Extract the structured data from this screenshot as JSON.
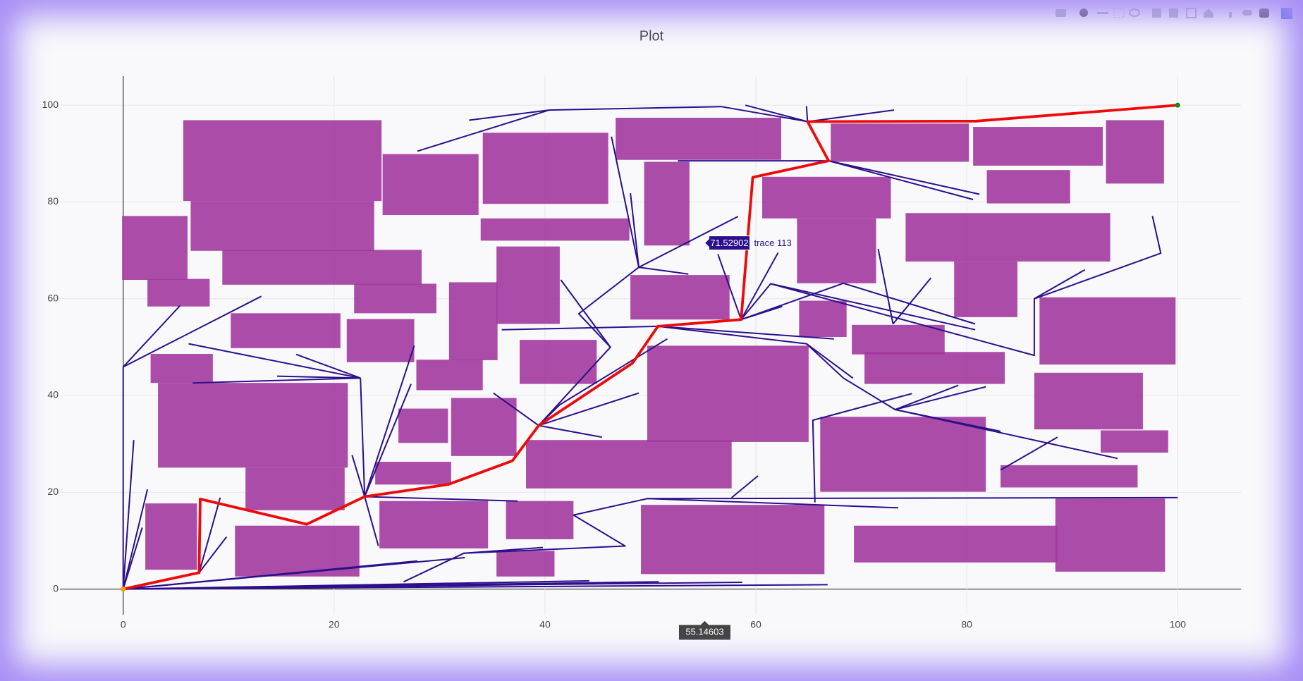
{
  "chart_data": {
    "type": "line",
    "title": "Plot",
    "xlim": [
      -6,
      106
    ],
    "ylim": [
      -5.3,
      106
    ],
    "xticks": [
      0,
      20,
      40,
      60,
      80,
      100
    ],
    "yticks": [
      0,
      20,
      40,
      60,
      80,
      100
    ],
    "grid": true,
    "obstacles": {
      "color": "#a2399e",
      "x0": [
        5.7,
        6.4,
        -0.1,
        9.4,
        2.3,
        24.6,
        34.1,
        33.9,
        46.7,
        49.4,
        35.4,
        30.9,
        21.9,
        10.2,
        21.2,
        2.6,
        3.3,
        11.6,
        2.1,
        10.6,
        27.8,
        26.1,
        31.1,
        23.9,
        24.3,
        36.3,
        35.4,
        37.6,
        38.2,
        48.1,
        49.7,
        49.1,
        60.6,
        63.9,
        64.1,
        67.1,
        80.6,
        93.2,
        81.9,
        74.2,
        78.8,
        86.9,
        69.1,
        70.3,
        86.4,
        92.7,
        66.1,
        83.2,
        69.3,
        88.4
      ],
      "x1": [
        24.5,
        23.8,
        6.1,
        28.3,
        8.2,
        33.7,
        46.0,
        48.0,
        62.4,
        53.7,
        41.4,
        35.5,
        29.7,
        20.6,
        27.6,
        8.5,
        21.3,
        21.0,
        7.0,
        22.4,
        34.1,
        30.8,
        37.3,
        31.1,
        34.6,
        42.7,
        40.9,
        44.9,
        57.7,
        57.5,
        65.0,
        66.5,
        72.8,
        71.4,
        68.6,
        80.2,
        92.9,
        98.7,
        89.8,
        93.6,
        84.8,
        99.8,
        77.9,
        83.6,
        96.7,
        99.1,
        81.8,
        96.2,
        88.6,
        98.8
      ],
      "y0": [
        80.2,
        69.9,
        63.9,
        62.9,
        58.4,
        77.3,
        79.6,
        72.0,
        88.7,
        71.0,
        54.8,
        47.3,
        57.0,
        49.8,
        46.9,
        42.6,
        25.1,
        16.3,
        4.0,
        2.6,
        41.1,
        30.2,
        27.5,
        21.6,
        8.4,
        10.3,
        2.6,
        42.4,
        20.8,
        55.7,
        30.4,
        3.1,
        76.6,
        63.2,
        52.1,
        88.3,
        87.5,
        83.8,
        79.7,
        67.7,
        56.2,
        46.4,
        48.5,
        42.4,
        33.0,
        28.2,
        20.1,
        21.0,
        5.5,
        3.6
      ],
      "y1": [
        96.9,
        80.2,
        77.1,
        70.1,
        64.1,
        89.9,
        94.3,
        76.6,
        97.4,
        88.3,
        70.8,
        63.4,
        63.1,
        57.0,
        55.8,
        48.6,
        42.6,
        25.1,
        17.7,
        13.1,
        47.4,
        37.3,
        39.5,
        26.3,
        18.2,
        18.2,
        7.9,
        51.5,
        30.8,
        64.9,
        50.3,
        17.4,
        85.2,
        76.6,
        59.6,
        96.2,
        95.5,
        96.9,
        86.6,
        77.7,
        67.7,
        60.3,
        54.6,
        49.0,
        44.7,
        32.8,
        35.6,
        25.6,
        13.1,
        18.7
      ]
    },
    "series": [
      {
        "color": "#2c0f8c",
        "mode": "lines",
        "width": 2,
        "x": [
          0,
          0,
          null,
          0,
          5.4,
          null,
          0,
          13.1,
          null,
          6.2,
          22.5,
          null,
          6.6,
          22.5,
          null,
          16.4,
          22.5,
          null,
          14.6,
          22.5,
          null,
          22.5,
          22.9,
          null,
          22.9,
          27.6,
          null,
          22.9,
          27.3,
          null,
          22.9,
          21.7,
          null,
          22.9,
          24.2,
          null,
          22.9,
          37.4,
          null,
          0,
          1.0,
          null,
          0,
          2.3,
          null,
          0,
          1.8,
          null,
          7.2,
          9.2,
          null,
          7.2,
          9.8,
          null,
          0,
          27.9,
          null,
          0,
          32.4,
          null,
          0,
          44.2,
          null,
          0,
          58.7,
          null,
          0,
          66.8,
          null,
          0,
          50.8,
          null,
          26.6,
          32.3,
          39.8,
          null,
          32.3,
          47.6,
          42.7,
          49.7,
          100,
          null,
          49.7,
          73.5,
          null,
          57.7,
          60.2,
          null,
          65.6,
          65.4,
          74.8,
          null,
          39.4,
          48.9,
          null,
          39.4,
          45.4,
          null,
          39.4,
          35.1,
          null,
          39.4,
          41.4,
          51.6,
          null,
          39.4,
          46.2,
          43.2,
          48.9,
          46.3,
          null,
          48.9,
          48.1,
          null,
          48.9,
          53.6,
          null,
          48.9,
          58.3,
          null,
          41.5,
          46.2,
          null,
          50.7,
          35.9,
          null,
          50.7,
          64.8,
          69.2,
          null,
          64.8,
          68.3,
          73.2,
          81.8,
          null,
          73.2,
          79.2,
          null,
          73.2,
          83.2,
          null,
          73.2,
          94.3,
          null,
          50.7,
          67.4,
          null,
          58.6,
          56.4,
          null,
          58.6,
          62.1,
          null,
          58.6,
          61.4,
          80.8,
          null,
          61.4,
          86.4,
          86.4,
          98.4,
          97.6,
          null,
          86.4,
          91.2,
          null,
          58.6,
          68.3,
          80.8,
          null,
          58.6,
          62.5,
          null,
          73.0,
          71.6,
          null,
          73.0,
          76.6,
          null,
          66.9,
          52.6,
          null,
          66.9,
          81.2,
          null,
          66.9,
          80.6,
          null,
          64.9,
          73.1,
          null,
          64.9,
          64.8,
          null,
          64.9,
          59.0,
          null,
          64.9,
          56.7,
          40.4,
          32.8,
          null,
          40.4,
          27.9,
          null,
          88.6,
          83.2
        ],
        "y": [
          0,
          45.9,
          null,
          45.9,
          58.6,
          null,
          45.9,
          60.5,
          null,
          50.7,
          43.6,
          null,
          42.6,
          43.6,
          null,
          48.5,
          43.6,
          null,
          44.0,
          43.6,
          null,
          43.6,
          19.1,
          null,
          19.1,
          50.3,
          null,
          19.1,
          42.4,
          null,
          19.1,
          27.7,
          null,
          19.1,
          8.9,
          null,
          19.1,
          18.2,
          null,
          0,
          30.8,
          null,
          0,
          20.6,
          null,
          0,
          12.7,
          null,
          3.4,
          18.9,
          null,
          3.4,
          10.8,
          null,
          0,
          5.8,
          null,
          0,
          6.5,
          null,
          0,
          1.7,
          null,
          0,
          1.4,
          null,
          0,
          0.9,
          null,
          0,
          1.5,
          null,
          1.5,
          7.4,
          8.6,
          null,
          7.4,
          8.9,
          15.3,
          18.7,
          18.9,
          null,
          18.7,
          16.8,
          null,
          18.9,
          23.4,
          null,
          17.9,
          34.9,
          40.4,
          null,
          33.8,
          40.5,
          null,
          33.8,
          31.4,
          null,
          33.8,
          40.5,
          null,
          33.8,
          38.1,
          51.7,
          null,
          33.8,
          50.0,
          56.9,
          66.5,
          93.5,
          null,
          66.5,
          81.8,
          null,
          66.5,
          65.1,
          null,
          66.5,
          77.0,
          null,
          63.9,
          50.0,
          null,
          54.3,
          53.6,
          null,
          54.3,
          50.7,
          43.6,
          null,
          50.7,
          43.6,
          37.1,
          41.8,
          null,
          37.1,
          42.1,
          null,
          37.1,
          32.6,
          null,
          37.1,
          27.0,
          null,
          54.3,
          51.7,
          null,
          55.7,
          69.2,
          null,
          55.7,
          69.5,
          null,
          55.7,
          63.1,
          53.6,
          null,
          63.1,
          48.3,
          60.0,
          69.4,
          77.1,
          null,
          60.0,
          66.0,
          null,
          55.7,
          63.2,
          54.8,
          null,
          55.7,
          58.4,
          null,
          54.8,
          70.3,
          null,
          54.8,
          64.3,
          null,
          88.5,
          88.5,
          null,
          88.5,
          81.6,
          null,
          88.5,
          80.5,
          null,
          96.6,
          99.0,
          null,
          96.6,
          99.8,
          null,
          96.6,
          100,
          null,
          96.6,
          99.7,
          99.0,
          96.9,
          null,
          99.0,
          90.5,
          null,
          31.4,
          24.6
        ]
      },
      {
        "color": "#ee0a0a",
        "mode": "lines",
        "width": 3.8,
        "x": [
          0,
          7.2,
          7.3,
          17.4,
          22.9,
          30.8,
          36.9,
          39.4,
          48.3,
          50.7,
          58.6,
          59.7,
          66.9,
          64.9,
          80.9,
          100
        ],
        "y": [
          0,
          3.4,
          18.6,
          13.4,
          19.1,
          21.6,
          26.5,
          33.8,
          46.7,
          54.3,
          55.7,
          85.1,
          88.5,
          96.6,
          96.7,
          100
        ]
      },
      {
        "color": "#ff9900",
        "mode": "markers",
        "x": [
          0
        ],
        "y": [
          0
        ]
      },
      {
        "color": "#108a10",
        "mode": "markers",
        "x": [
          100
        ],
        "y": [
          100
        ]
      }
    ],
    "hover": {
      "x": 55.14603,
      "y": 71.52902,
      "name": "trace 113",
      "color": "#2c0f8c"
    }
  }
}
